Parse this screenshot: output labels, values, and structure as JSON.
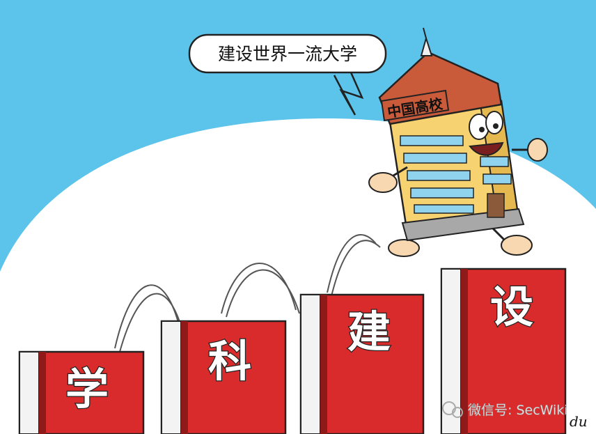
{
  "speech_bubble": {
    "text": "建设世界一流大学"
  },
  "building": {
    "sign": "中国高校"
  },
  "books": [
    {
      "label": "学"
    },
    {
      "label": "科"
    },
    {
      "label": "建"
    },
    {
      "label": "设"
    }
  ],
  "watermark": {
    "text": "微信号: SecWiki"
  },
  "signature": {
    "text": "du"
  },
  "colors": {
    "sky": "#5cc3ea",
    "dome": "#ffffff",
    "book_red": "#d92b2b",
    "book_edge": "#8e1a1a",
    "building_body": "#f6d270",
    "roof": "#c95a3a",
    "window": "#8fd3ef"
  }
}
